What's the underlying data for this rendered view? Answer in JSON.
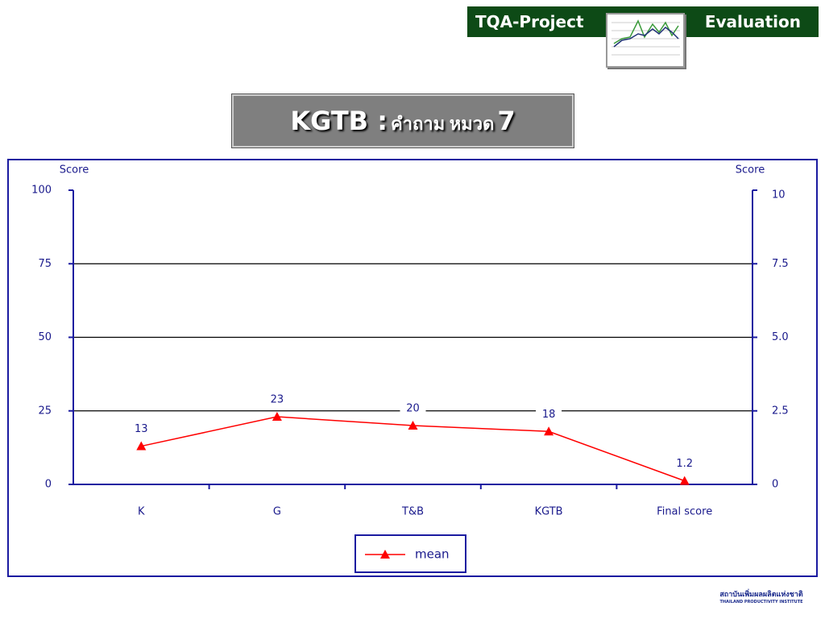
{
  "header": {
    "left": "TQA-Project",
    "right": "Evaluation"
  },
  "title": [
    "KGTB :",
    "คำถาม หมวด",
    "7"
  ],
  "chart_data": {
    "type": "line",
    "y_label": "Score",
    "y2_label": "Score",
    "categories": [
      "K",
      "G",
      "T&B",
      "KGTB",
      "Final score"
    ],
    "series": [
      {
        "name": "mean",
        "color": "#ff0000",
        "values": [
          13,
          23,
          20,
          18,
          1.2
        ]
      }
    ],
    "ylim": [
      0,
      100
    ],
    "yticks": [
      0,
      25,
      50,
      75,
      100
    ],
    "y2lim": [
      0,
      10
    ],
    "y2ticks": [
      0,
      2.5,
      {
        "value": 5,
        "label": "5.0"
      },
      7.5,
      10
    ],
    "grid": true
  },
  "logo": {
    "thai": "สถาบันเพิ่มผลผลิตแห่งชาติ",
    "english": "THAILAND PRODUCTIVITY INSTITUTE"
  }
}
